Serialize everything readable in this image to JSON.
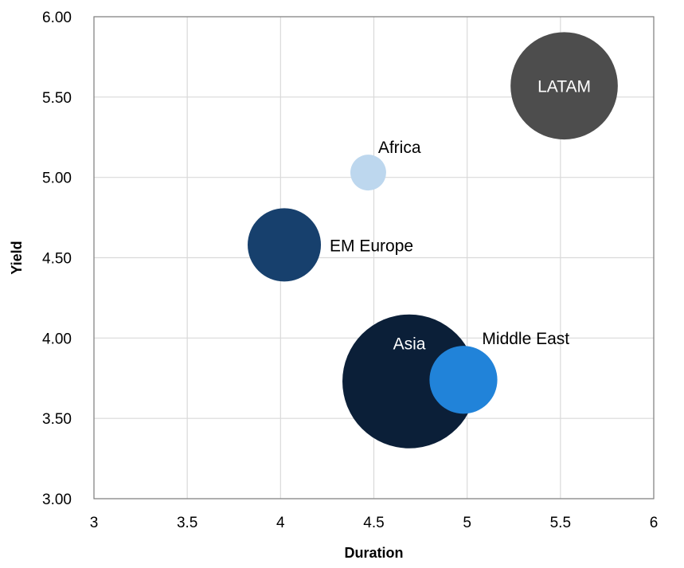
{
  "chart_data": {
    "type": "scatter",
    "title": "",
    "xlabel": "Duration",
    "ylabel": "Yield",
    "xlim": [
      3,
      6
    ],
    "ylim": [
      3.0,
      6.0
    ],
    "x_ticks": [
      "3",
      "3.5",
      "4",
      "4.5",
      "5",
      "5.5",
      "6"
    ],
    "y_ticks": [
      "3.00",
      "3.50",
      "4.00",
      "4.50",
      "5.00",
      "5.50",
      "6.00"
    ],
    "grid": true,
    "legend": "none",
    "series": [
      {
        "label": "LATAM",
        "x": 5.52,
        "y": 5.57,
        "size": 9.0,
        "color": "#4d4d4d",
        "label_color": "#ffffff",
        "label_pos": "center"
      },
      {
        "label": "Africa",
        "x": 4.47,
        "y": 5.03,
        "size": 1.0,
        "color": "#bdd7ee",
        "label_color": "#000000",
        "label_pos": "upper-right"
      },
      {
        "label": "EM Europe",
        "x": 4.02,
        "y": 4.58,
        "size": 4.2,
        "color": "#17406d",
        "label_color": "#000000",
        "label_pos": "right"
      },
      {
        "label": "Asia",
        "x": 4.69,
        "y": 3.73,
        "size": 14.0,
        "color": "#0b1f38",
        "label_color": "#ffffff",
        "label_pos": "inside-top"
      },
      {
        "label": "Middle East",
        "x": 4.98,
        "y": 3.74,
        "size": 3.6,
        "color": "#2183d9",
        "label_color": "#000000",
        "label_pos": "upper-right"
      }
    ]
  }
}
